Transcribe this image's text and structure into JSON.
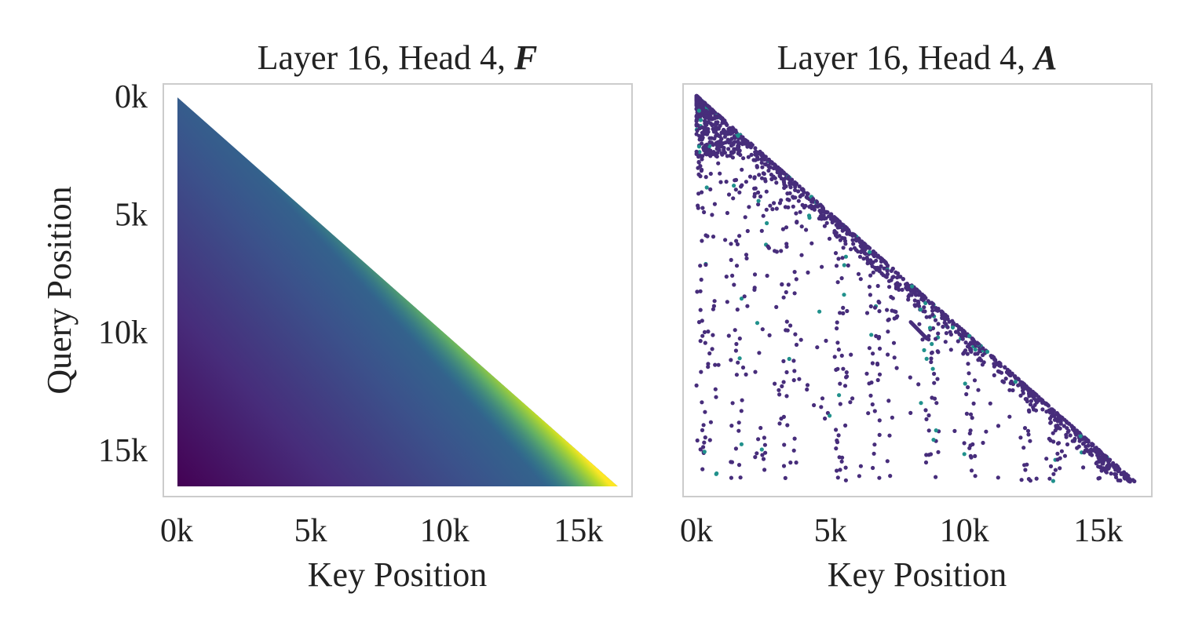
{
  "chart_data": [
    {
      "type": "heatmap",
      "panel": "left",
      "title": "Layer 16, Head 4, ",
      "title_symbol": "F",
      "xlabel": "Key Position",
      "ylabel": "Query Position",
      "x_ticks": [
        "0k",
        "5k",
        "10k",
        "15k"
      ],
      "y_ticks": [
        "0k",
        "5k",
        "10k",
        "15k"
      ],
      "x_tick_values": [
        0,
        5000,
        10000,
        15000
      ],
      "y_tick_values": [
        0,
        5000,
        10000,
        15000
      ],
      "xlim": [
        -500,
        17000
      ],
      "ylim": [
        17000,
        -500
      ],
      "seq_len": 16384,
      "colormap": "viridis",
      "mask": "causal-lower-triangle",
      "description": "value increases toward the diagonal, lowest at bottom-left"
    },
    {
      "type": "scatter",
      "panel": "right",
      "title": "Layer 16, Head 4, ",
      "title_symbol": "A",
      "xlabel": "Key Position",
      "ylabel": "",
      "x_ticks": [
        "0k",
        "5k",
        "10k",
        "15k"
      ],
      "x_tick_values": [
        0,
        5000,
        10000,
        15000
      ],
      "xlim": [
        -500,
        17000
      ],
      "ylim": [
        17000,
        -500
      ],
      "seq_len": 16384,
      "colormap": "viridis",
      "point_color": "#472d7b",
      "accent_color": "#21918c",
      "column_clusters_k": [
        0.2,
        0.5,
        1.5,
        2.4,
        3.5,
        5.4,
        6.6,
        7.3,
        8.8,
        10.2,
        12.3,
        13.4,
        15.2
      ],
      "diagonal_streak": {
        "x": [
          8.0,
          8.6
        ],
        "y": [
          9.6,
          10.3
        ]
      }
    }
  ],
  "colors": {
    "frame": "#cccccc",
    "text": "#222222",
    "viridis_dark": "#440154",
    "viridis_mid": "#21918c",
    "viridis_bright": "#fde725"
  }
}
